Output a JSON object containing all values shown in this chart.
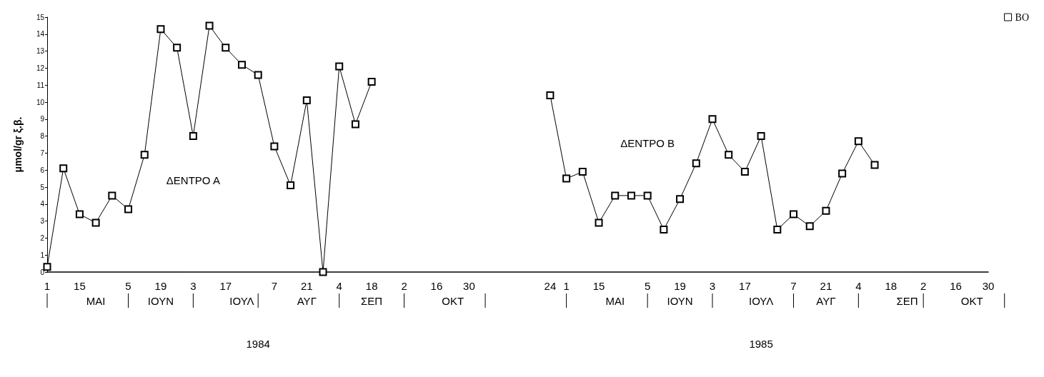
{
  "chart_data": {
    "type": "line",
    "ylabel": "μmol/gr ξ.β.",
    "categories": [
      "1",
      null,
      "15",
      null,
      null,
      "5",
      null,
      "19",
      null,
      "3",
      null,
      "17",
      null,
      null,
      "7",
      null,
      "21",
      null,
      "4",
      null,
      "18",
      null,
      "2",
      null,
      "16",
      null,
      "30",
      null,
      null,
      null,
      null,
      "24",
      "1",
      null,
      "15",
      null,
      null,
      "5",
      null,
      "19",
      null,
      "3",
      null,
      "17",
      null,
      null,
      "7",
      null,
      "21",
      null,
      "4",
      null,
      "18",
      null,
      "2",
      null,
      "16",
      null,
      "30"
    ],
    "series": [
      {
        "name": "BO",
        "color": "#000000",
        "values": [
          0.3,
          6.1,
          3.4,
          2.9,
          4.5,
          3.7,
          6.9,
          14.3,
          13.2,
          8.0,
          14.5,
          13.2,
          12.2,
          11.6,
          7.4,
          5.1,
          10.1,
          0.0,
          12.1,
          8.7,
          11.2,
          null,
          null,
          null,
          null,
          null,
          null,
          null,
          null,
          null,
          null,
          10.4,
          5.5,
          5.9,
          2.9,
          4.5,
          4.5,
          4.5,
          2.5,
          4.3,
          6.4,
          9.0,
          6.9,
          5.9,
          8.0,
          2.5,
          3.4,
          2.7,
          3.6,
          5.8,
          7.7,
          6.3,
          null,
          null,
          null,
          null,
          null,
          null,
          null
        ]
      }
    ],
    "annotations": [
      "ΜΑΙ",
      "ΙΟΥΝ",
      "ΙΟΥΛ",
      "ΑΥΓ",
      "ΣΕΠ",
      "ΟΚΤ",
      "ΜΑΙ",
      "ΙΟΥΝ",
      "ΙΟΥΛ",
      "ΑΥΓ",
      "ΣΕΠ",
      "ΟΚΤ",
      "1984",
      "1985",
      "ΔΕΝΤΡΟ Α",
      "ΔΕΝΤΡΟ Β"
    ],
    "ylim": [
      0,
      15
    ],
    "yticks": [
      0,
      1,
      2,
      3,
      4,
      5,
      6,
      7,
      8,
      9,
      10,
      11,
      12,
      13,
      14,
      15
    ],
    "grid": false,
    "legend": "top right",
    "marker": "square",
    "line_style": "solid"
  }
}
